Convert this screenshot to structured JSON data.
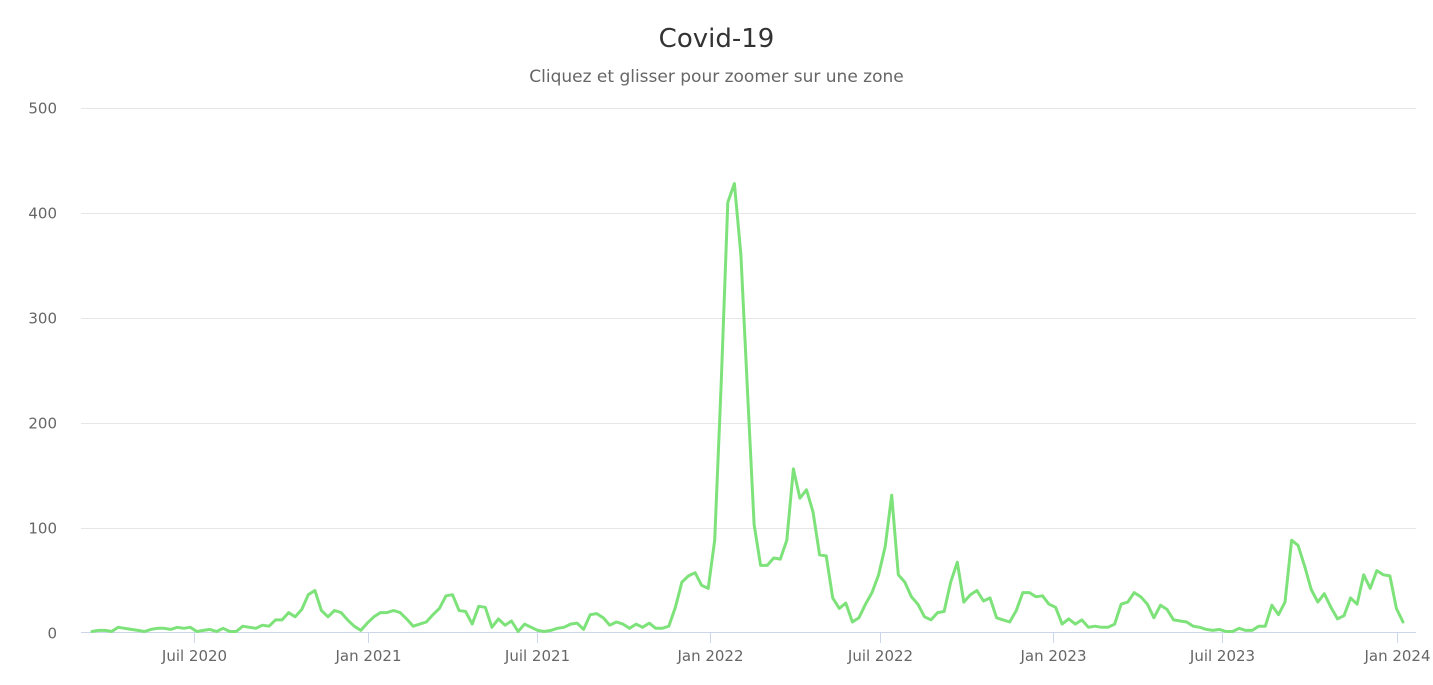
{
  "header": {
    "title": "Covid-19",
    "subtitle": "Cliquez et glisser pour zoomer sur une zone"
  },
  "colors": {
    "series": "#7ee27a",
    "grid": "#e6e6e6",
    "axis": "#ccd6eb",
    "label": "#666666"
  },
  "chart_data": {
    "type": "line",
    "title": "Covid-19",
    "subtitle": "Cliquez et glisser pour zoomer sur une zone",
    "xlabel": "",
    "ylabel": "",
    "ylim": [
      0,
      500
    ],
    "yticks": [
      0,
      100,
      200,
      300,
      400,
      500
    ],
    "ytick_labels": [
      "0",
      "100",
      "200",
      "300",
      "400",
      "500"
    ],
    "xtick_labels": [
      "Juil 2020",
      "Jan 2021",
      "Juil 2021",
      "Jan 2022",
      "Juil 2022",
      "Jan 2023",
      "Juil 2023",
      "Jan 2024"
    ],
    "grid": true,
    "legend": "none",
    "x_start": "2020-03 (weekly)",
    "series": [
      {
        "name": "Covid-19",
        "color": "#7ee27a",
        "values": [
          1,
          2,
          2,
          1,
          5,
          4,
          3,
          2,
          1,
          3,
          4,
          4,
          3,
          5,
          4,
          5,
          1,
          2,
          3,
          1,
          4,
          1,
          1,
          6,
          5,
          4,
          7,
          6,
          12,
          12,
          19,
          15,
          22,
          36,
          40,
          21,
          15,
          21,
          19,
          12,
          6,
          2,
          9,
          15,
          19,
          19,
          21,
          19,
          13,
          6,
          8,
          10,
          17,
          23,
          35,
          36,
          21,
          20,
          8,
          25,
          24,
          5,
          13,
          7,
          11,
          1,
          8,
          5,
          2,
          1,
          2,
          4,
          5,
          8,
          9,
          3,
          17,
          18,
          14,
          7,
          10,
          8,
          4,
          8,
          5,
          9,
          4,
          4,
          6,
          24,
          48,
          54,
          57,
          45,
          42,
          88,
          240,
          410,
          428,
          360,
          230,
          103,
          64,
          64,
          71,
          70,
          88,
          156,
          128,
          136,
          115,
          74,
          73,
          33,
          23,
          28,
          10,
          14,
          27,
          38,
          55,
          82,
          131,
          55,
          48,
          34,
          27,
          15,
          12,
          19,
          20,
          48,
          67,
          29,
          36,
          40,
          30,
          33,
          14,
          12,
          10,
          21,
          38,
          38,
          34,
          35,
          27,
          24,
          8,
          13,
          8,
          12,
          5,
          6,
          5,
          5,
          8,
          27,
          29,
          38,
          34,
          27,
          14,
          26,
          22,
          12,
          11,
          10,
          6,
          5,
          3,
          2,
          3,
          1,
          1,
          4,
          2,
          2,
          6,
          6,
          26,
          17,
          29,
          88,
          83,
          63,
          41,
          29,
          37,
          24,
          13,
          16,
          33,
          27,
          55,
          42,
          59,
          55,
          54,
          23,
          10
        ]
      }
    ]
  }
}
